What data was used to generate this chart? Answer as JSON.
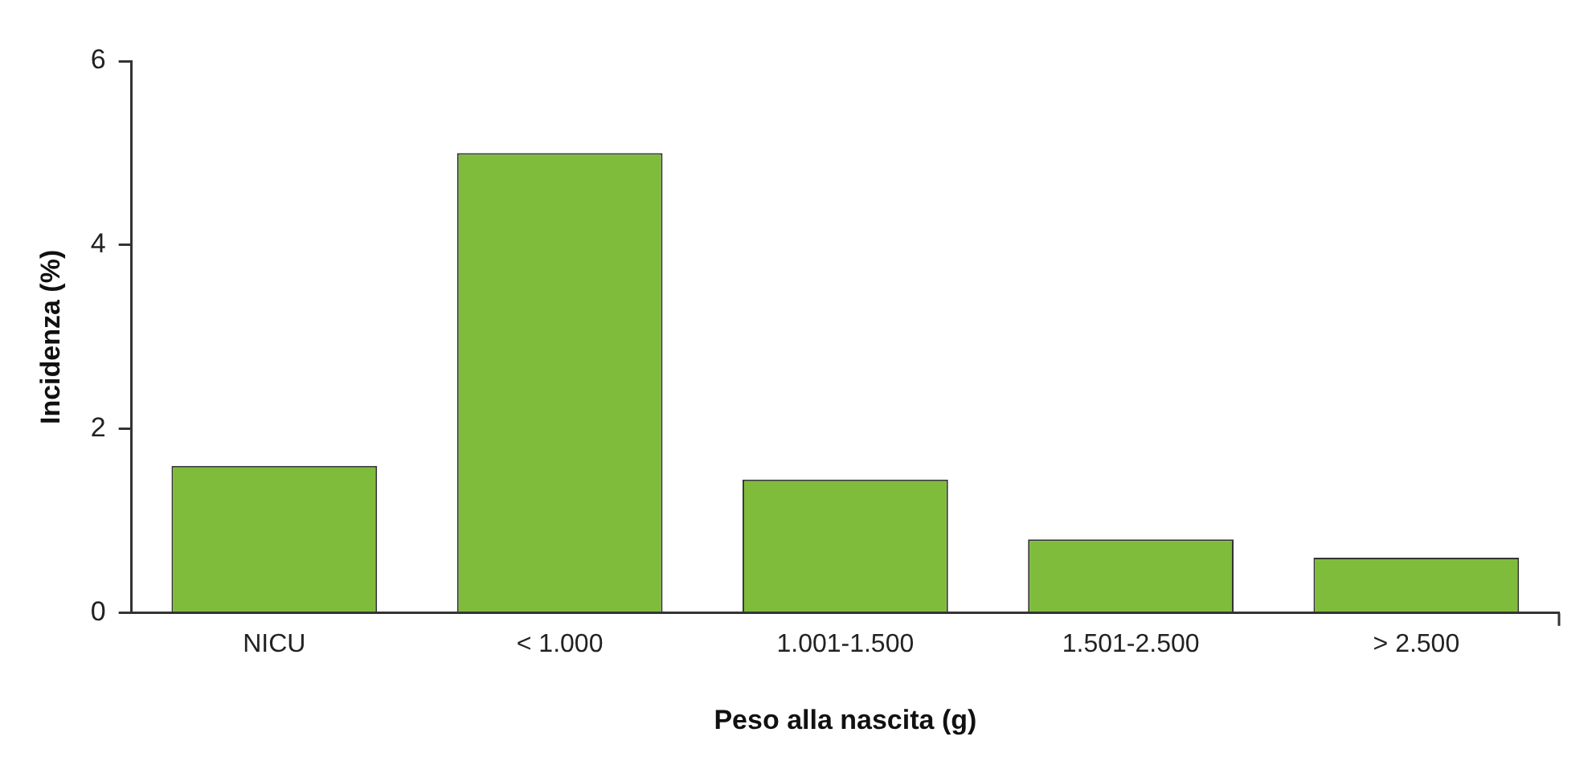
{
  "chart_data": {
    "type": "bar",
    "xlabel": "Peso alla nascita (g)",
    "ylabel": "Incidenza (%)",
    "categories": [
      "NICU",
      "< 1.000",
      "1.001-1.500",
      "1.501-2.500",
      "> 2.500"
    ],
    "values": [
      1.6,
      5.0,
      1.45,
      0.8,
      0.6
    ],
    "color": "#80bc3c",
    "ylim": [
      0,
      6
    ],
    "yticks": [
      0,
      2,
      4,
      6
    ],
    "grid": false,
    "legend": false
  }
}
